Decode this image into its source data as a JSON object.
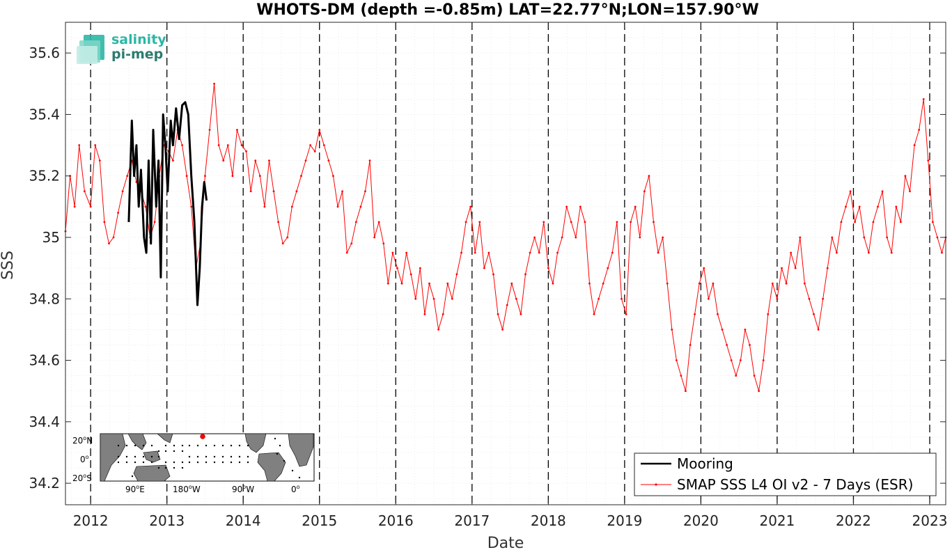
{
  "chart_data": {
    "type": "line",
    "title": "WHOTS-DM (depth =-0.85m) LAT=22.77°N;LON=157.90°W",
    "xlabel": "Date",
    "ylabel": "SSS",
    "xlim": [
      2011.67,
      2023.21
    ],
    "ylim": [
      34.13,
      35.7
    ],
    "x_ticks": [
      2012,
      2013,
      2014,
      2015,
      2016,
      2017,
      2018,
      2019,
      2020,
      2021,
      2022,
      2023
    ],
    "y_ticks": [
      34.2,
      34.4,
      34.6,
      34.8,
      35.0,
      35.2,
      35.4,
      35.6
    ],
    "y_tick_labels": [
      "34.2",
      "34.4",
      "34.6",
      "34.8",
      "35",
      "35.2",
      "35.4",
      "35.6"
    ],
    "grid": true,
    "year_marker_lines": [
      2012,
      2013,
      2014,
      2015,
      2016,
      2017,
      2018,
      2019,
      2020,
      2021,
      2022,
      2023
    ],
    "legend_position": "bottom-right",
    "series": [
      {
        "name": "Mooring",
        "color": "#000000",
        "x": [
          2012.5,
          2012.54,
          2012.57,
          2012.6,
          2012.63,
          2012.66,
          2012.7,
          2012.73,
          2012.76,
          2012.79,
          2012.82,
          2012.86,
          2012.89,
          2012.92,
          2012.95,
          2012.98,
          2013.01,
          2013.05,
          2013.08,
          2013.12,
          2013.16,
          2013.2,
          2013.24,
          2013.28,
          2013.32,
          2013.36,
          2013.4,
          2013.43,
          2013.46,
          2013.49,
          2013.52
        ],
        "y": [
          35.05,
          35.38,
          35.2,
          35.3,
          35.1,
          35.22,
          35.0,
          34.95,
          35.25,
          34.98,
          35.35,
          35.1,
          35.25,
          34.87,
          35.4,
          35.3,
          35.15,
          35.38,
          35.3,
          35.42,
          35.32,
          35.43,
          35.44,
          35.4,
          35.2,
          35.05,
          34.78,
          34.9,
          35.1,
          35.18,
          35.12
        ]
      },
      {
        "name": "SMAP SSS L4 OI v2 - 7 Days (ESR)",
        "color": "#ff0000",
        "x": [
          2011.67,
          2011.73,
          2011.79,
          2011.85,
          2011.92,
          2012.0,
          2012.06,
          2012.12,
          2012.18,
          2012.24,
          2012.3,
          2012.36,
          2012.42,
          2012.48,
          2012.54,
          2012.6,
          2012.66,
          2012.72,
          2012.78,
          2012.84,
          2012.9,
          2012.96,
          2013.02,
          2013.08,
          2013.14,
          2013.2,
          2013.26,
          2013.32,
          2013.38,
          2013.44,
          2013.5,
          2013.56,
          2013.62,
          2013.68,
          2013.74,
          2013.8,
          2013.86,
          2013.92,
          2013.98,
          2014.04,
          2014.1,
          2014.16,
          2014.22,
          2014.28,
          2014.34,
          2014.4,
          2014.46,
          2014.52,
          2014.58,
          2014.64,
          2014.7,
          2014.76,
          2014.82,
          2014.88,
          2014.94,
          2015.0,
          2015.06,
          2015.12,
          2015.18,
          2015.24,
          2015.3,
          2015.36,
          2015.42,
          2015.48,
          2015.54,
          2015.6,
          2015.66,
          2015.72,
          2015.78,
          2015.84,
          2015.9,
          2015.96,
          2016.02,
          2016.08,
          2016.14,
          2016.2,
          2016.26,
          2016.32,
          2016.38,
          2016.44,
          2016.5,
          2016.56,
          2016.62,
          2016.68,
          2016.74,
          2016.8,
          2016.86,
          2016.92,
          2016.98,
          2017.04,
          2017.1,
          2017.16,
          2017.22,
          2017.28,
          2017.34,
          2017.4,
          2017.46,
          2017.52,
          2017.58,
          2017.64,
          2017.7,
          2017.76,
          2017.82,
          2017.88,
          2017.94,
          2018.0,
          2018.06,
          2018.12,
          2018.18,
          2018.24,
          2018.3,
          2018.36,
          2018.42,
          2018.48,
          2018.54,
          2018.6,
          2018.66,
          2018.72,
          2018.78,
          2018.84,
          2018.9,
          2018.96,
          2019.02,
          2019.08,
          2019.14,
          2019.2,
          2019.26,
          2019.32,
          2019.38,
          2019.44,
          2019.5,
          2019.56,
          2019.62,
          2019.68,
          2019.74,
          2019.8,
          2019.86,
          2019.92,
          2019.98,
          2020.04,
          2020.1,
          2020.16,
          2020.22,
          2020.28,
          2020.34,
          2020.4,
          2020.46,
          2020.52,
          2020.58,
          2020.64,
          2020.7,
          2020.76,
          2020.82,
          2020.88,
          2020.94,
          2021.0,
          2021.06,
          2021.12,
          2021.18,
          2021.24,
          2021.3,
          2021.36,
          2021.42,
          2021.48,
          2021.54,
          2021.6,
          2021.66,
          2021.72,
          2021.78,
          2021.84,
          2021.9,
          2021.96,
          2022.02,
          2022.08,
          2022.14,
          2022.2,
          2022.26,
          2022.32,
          2022.38,
          2022.44,
          2022.5,
          2022.56,
          2022.62,
          2022.68,
          2022.74,
          2022.8,
          2022.86,
          2022.92,
          2022.98,
          2023.04,
          2023.1,
          2023.16,
          2023.21
        ],
        "y": [
          35.02,
          35.2,
          35.1,
          35.3,
          35.15,
          35.1,
          35.3,
          35.25,
          35.05,
          34.98,
          35.0,
          35.08,
          35.15,
          35.2,
          35.25,
          35.18,
          35.15,
          35.1,
          35.0,
          35.05,
          35.2,
          35.3,
          35.28,
          35.25,
          35.35,
          35.3,
          35.2,
          35.1,
          34.9,
          34.98,
          35.2,
          35.35,
          35.5,
          35.3,
          35.25,
          35.3,
          35.2,
          35.35,
          35.3,
          35.28,
          35.15,
          35.25,
          35.2,
          35.1,
          35.25,
          35.15,
          35.05,
          34.98,
          35.0,
          35.1,
          35.15,
          35.2,
          35.25,
          35.3,
          35.28,
          35.35,
          35.3,
          35.25,
          35.2,
          35.1,
          35.15,
          34.95,
          34.98,
          35.05,
          35.1,
          35.15,
          35.25,
          35.0,
          35.05,
          34.98,
          34.85,
          34.95,
          34.9,
          34.85,
          34.95,
          34.88,
          34.8,
          34.9,
          34.75,
          34.85,
          34.8,
          34.7,
          34.75,
          34.85,
          34.8,
          34.88,
          34.95,
          35.05,
          35.1,
          34.95,
          35.05,
          34.9,
          34.95,
          34.88,
          34.75,
          34.7,
          34.78,
          34.85,
          34.8,
          34.75,
          34.88,
          34.95,
          35.0,
          34.95,
          35.05,
          34.9,
          34.85,
          34.95,
          35.0,
          35.1,
          35.05,
          35.0,
          35.1,
          35.05,
          34.85,
          34.75,
          34.8,
          34.85,
          34.9,
          34.95,
          35.05,
          34.8,
          34.75,
          35.05,
          35.1,
          35.0,
          35.15,
          35.2,
          35.05,
          34.95,
          35.0,
          34.85,
          34.7,
          34.6,
          34.55,
          34.5,
          34.65,
          34.75,
          34.85,
          34.9,
          34.8,
          34.85,
          34.75,
          34.7,
          34.65,
          34.6,
          34.55,
          34.6,
          34.7,
          34.65,
          34.55,
          34.5,
          34.6,
          34.75,
          34.85,
          34.8,
          34.9,
          34.85,
          34.95,
          34.9,
          35.0,
          34.85,
          34.8,
          34.75,
          34.7,
          34.8,
          34.9,
          35.0,
          34.95,
          35.05,
          35.1,
          35.15,
          35.05,
          35.1,
          35.0,
          34.95,
          35.05,
          35.1,
          35.15,
          35.0,
          34.95,
          35.1,
          35.05,
          35.2,
          35.15,
          35.3,
          35.35,
          35.45,
          35.25,
          35.05,
          35.0,
          34.95,
          35.0
        ]
      }
    ]
  },
  "logo": {
    "line1": "salinity",
    "line2": "pi-mep"
  },
  "inset_map": {
    "lat_labels": [
      "20",
      "0",
      "20"
    ],
    "lat_hemispheres": [
      "N",
      "",
      "S"
    ],
    "lon_labels": [
      "90",
      "180",
      "90",
      "0"
    ],
    "lon_hemispheres": [
      "E",
      "W",
      "W",
      ""
    ],
    "degree_symbol": "o",
    "ocean_color": "#ffffff",
    "land_color": "#808080",
    "station_color": "#ff0000"
  }
}
